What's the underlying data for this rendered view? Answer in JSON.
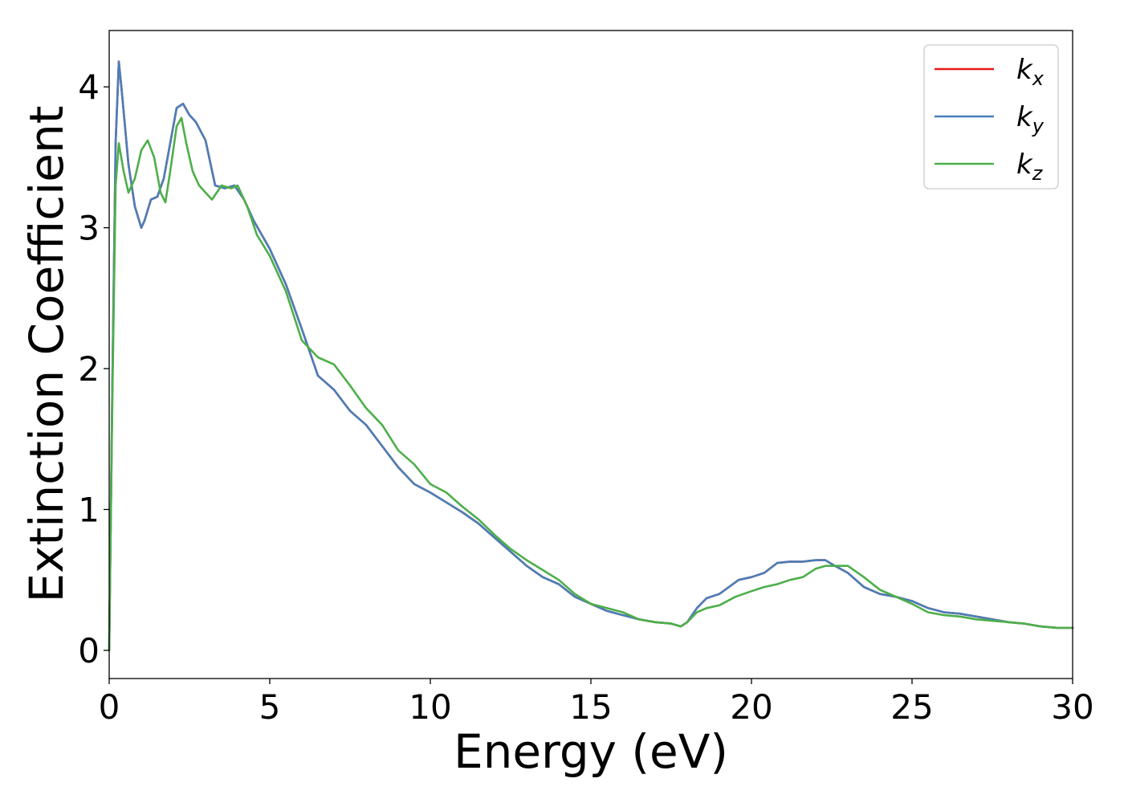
{
  "chart_data": {
    "type": "line",
    "xlabel": "Energy (eV)",
    "ylabel": "Extinction Coefficient",
    "xlim": [
      0,
      30
    ],
    "ylim": [
      -0.2,
      4.4
    ],
    "xticks": [
      "0",
      "5",
      "10",
      "15",
      "20",
      "25",
      "30"
    ],
    "yticks": [
      "0",
      "1",
      "2",
      "3",
      "4"
    ],
    "grid": false,
    "legend_position": "top-right",
    "series": [
      {
        "name": "k",
        "subscript": "x",
        "color": "#e41a1c",
        "x": [
          0,
          0.1,
          0.2,
          0.3,
          0.4,
          0.6,
          0.8,
          1.0,
          1.1,
          1.3,
          1.5,
          1.7,
          1.9,
          2.1,
          2.3,
          2.5,
          2.7,
          3.0,
          3.3,
          3.6,
          3.9,
          4.2,
          4.5,
          5.0,
          5.5,
          6.0,
          6.5,
          7.0,
          7.5,
          8.0,
          8.5,
          9.0,
          9.5,
          10.0,
          10.5,
          11.0,
          11.5,
          12.0,
          12.5,
          13.0,
          13.5,
          14.0,
          14.5,
          15.0,
          15.5,
          16.0,
          16.5,
          17.0,
          17.5,
          17.8,
          18.0,
          18.3,
          18.6,
          19.0,
          19.3,
          19.6,
          20.0,
          20.4,
          20.8,
          21.2,
          21.6,
          22.0,
          22.3,
          22.6,
          23.0,
          23.5,
          24.0,
          24.5,
          25.0,
          25.5,
          26.0,
          26.5,
          27.0,
          27.5,
          28.0,
          28.5,
          29.0,
          29.5,
          30.0
        ],
        "y": [
          0,
          1.9,
          3.6,
          4.18,
          3.95,
          3.45,
          3.15,
          3.0,
          3.05,
          3.2,
          3.22,
          3.35,
          3.6,
          3.85,
          3.88,
          3.8,
          3.75,
          3.62,
          3.3,
          3.28,
          3.3,
          3.2,
          3.05,
          2.85,
          2.6,
          2.28,
          1.95,
          1.85,
          1.7,
          1.6,
          1.45,
          1.3,
          1.18,
          1.12,
          1.05,
          0.98,
          0.9,
          0.8,
          0.7,
          0.6,
          0.52,
          0.47,
          0.38,
          0.33,
          0.28,
          0.25,
          0.22,
          0.2,
          0.19,
          0.17,
          0.2,
          0.3,
          0.37,
          0.4,
          0.45,
          0.5,
          0.52,
          0.55,
          0.62,
          0.63,
          0.63,
          0.64,
          0.64,
          0.6,
          0.55,
          0.45,
          0.4,
          0.38,
          0.35,
          0.3,
          0.27,
          0.26,
          0.24,
          0.22,
          0.2,
          0.19,
          0.17,
          0.16,
          0.16
        ]
      },
      {
        "name": "k",
        "subscript": "y",
        "color": "#4a7fb8",
        "x": [
          0,
          0.1,
          0.2,
          0.3,
          0.4,
          0.6,
          0.8,
          1.0,
          1.1,
          1.3,
          1.5,
          1.7,
          1.9,
          2.1,
          2.3,
          2.5,
          2.7,
          3.0,
          3.3,
          3.6,
          3.9,
          4.2,
          4.5,
          5.0,
          5.5,
          6.0,
          6.5,
          7.0,
          7.5,
          8.0,
          8.5,
          9.0,
          9.5,
          10.0,
          10.5,
          11.0,
          11.5,
          12.0,
          12.5,
          13.0,
          13.5,
          14.0,
          14.5,
          15.0,
          15.5,
          16.0,
          16.5,
          17.0,
          17.5,
          17.8,
          18.0,
          18.3,
          18.6,
          19.0,
          19.3,
          19.6,
          20.0,
          20.4,
          20.8,
          21.2,
          21.6,
          22.0,
          22.3,
          22.6,
          23.0,
          23.5,
          24.0,
          24.5,
          25.0,
          25.5,
          26.0,
          26.5,
          27.0,
          27.5,
          28.0,
          28.5,
          29.0,
          29.5,
          30.0
        ],
        "y": [
          0,
          1.9,
          3.6,
          4.18,
          3.95,
          3.45,
          3.15,
          3.0,
          3.05,
          3.2,
          3.22,
          3.35,
          3.6,
          3.85,
          3.88,
          3.8,
          3.75,
          3.62,
          3.3,
          3.28,
          3.3,
          3.2,
          3.05,
          2.85,
          2.6,
          2.28,
          1.95,
          1.85,
          1.7,
          1.6,
          1.45,
          1.3,
          1.18,
          1.12,
          1.05,
          0.98,
          0.9,
          0.8,
          0.7,
          0.6,
          0.52,
          0.47,
          0.38,
          0.33,
          0.28,
          0.25,
          0.22,
          0.2,
          0.19,
          0.17,
          0.2,
          0.3,
          0.37,
          0.4,
          0.45,
          0.5,
          0.52,
          0.55,
          0.62,
          0.63,
          0.63,
          0.64,
          0.64,
          0.6,
          0.55,
          0.45,
          0.4,
          0.38,
          0.35,
          0.3,
          0.27,
          0.26,
          0.24,
          0.22,
          0.2,
          0.19,
          0.17,
          0.16,
          0.16
        ]
      },
      {
        "name": "k",
        "subscript": "z",
        "color": "#4daf4a",
        "x": [
          0,
          0.1,
          0.2,
          0.3,
          0.45,
          0.6,
          0.8,
          1.0,
          1.2,
          1.4,
          1.6,
          1.75,
          1.9,
          2.1,
          2.25,
          2.4,
          2.6,
          2.8,
          3.0,
          3.2,
          3.5,
          3.8,
          4.0,
          4.3,
          4.6,
          5.0,
          5.5,
          6.0,
          6.5,
          7.0,
          7.5,
          8.0,
          8.5,
          9.0,
          9.5,
          10.0,
          10.5,
          11.0,
          11.5,
          12.0,
          12.5,
          13.0,
          13.5,
          14.0,
          14.5,
          15.0,
          15.5,
          16.0,
          16.5,
          17.0,
          17.5,
          17.8,
          18.0,
          18.3,
          18.6,
          19.0,
          19.5,
          20.0,
          20.4,
          20.8,
          21.2,
          21.6,
          22.0,
          22.3,
          22.6,
          23.0,
          23.5,
          24.0,
          24.5,
          25.0,
          25.5,
          26.0,
          26.5,
          27.0,
          27.5,
          28.0,
          28.5,
          29.0,
          29.5,
          30.0
        ],
        "y": [
          0,
          1.8,
          3.3,
          3.6,
          3.4,
          3.25,
          3.35,
          3.55,
          3.62,
          3.5,
          3.25,
          3.18,
          3.4,
          3.72,
          3.78,
          3.6,
          3.4,
          3.3,
          3.25,
          3.2,
          3.3,
          3.28,
          3.3,
          3.15,
          2.95,
          2.8,
          2.55,
          2.2,
          2.08,
          2.03,
          1.88,
          1.72,
          1.6,
          1.42,
          1.32,
          1.18,
          1.12,
          1.02,
          0.93,
          0.82,
          0.72,
          0.64,
          0.57,
          0.5,
          0.4,
          0.33,
          0.3,
          0.27,
          0.22,
          0.2,
          0.19,
          0.17,
          0.2,
          0.27,
          0.3,
          0.32,
          0.38,
          0.42,
          0.45,
          0.47,
          0.5,
          0.52,
          0.58,
          0.6,
          0.6,
          0.6,
          0.52,
          0.43,
          0.38,
          0.33,
          0.27,
          0.25,
          0.24,
          0.22,
          0.21,
          0.2,
          0.19,
          0.17,
          0.16,
          0.16
        ]
      }
    ]
  }
}
